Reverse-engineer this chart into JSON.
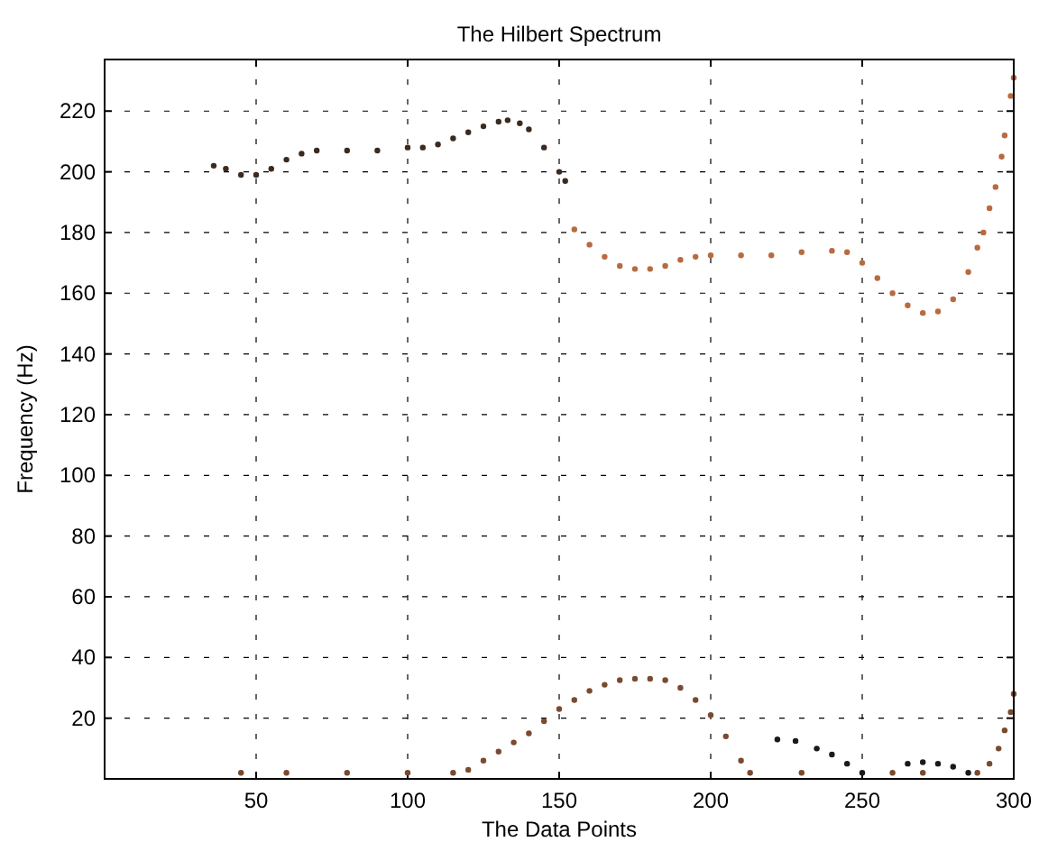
{
  "chart_data": {
    "type": "scatter",
    "title": "The Hilbert Spectrum",
    "xlabel": "The Data Points",
    "ylabel": "Frequency (Hz)",
    "xlim": [
      0,
      300
    ],
    "xticks": [
      50,
      100,
      150,
      200,
      250,
      300
    ],
    "ylim": [
      0,
      237
    ],
    "yticks": [
      20,
      40,
      60,
      80,
      100,
      120,
      140,
      160,
      180,
      200,
      220
    ],
    "grid": true,
    "marker": "circle",
    "series": [
      {
        "color": "#3b2a20",
        "x": [
          36,
          40,
          45,
          50,
          55,
          60,
          65,
          70,
          80,
          90,
          100,
          105,
          110,
          115,
          120,
          125,
          130,
          133,
          137,
          140,
          145,
          150,
          152
        ],
        "values": [
          202,
          201,
          199,
          199,
          201,
          204,
          206,
          207,
          207,
          207,
          208,
          208,
          209,
          211,
          213,
          215,
          216.5,
          217,
          216,
          214,
          208,
          200,
          197
        ]
      },
      {
        "color": "#b86a40",
        "x": [
          155,
          160,
          165,
          170,
          175,
          180,
          185,
          190,
          195,
          200,
          210,
          220,
          230,
          240,
          245,
          250,
          255,
          260,
          265,
          270,
          275,
          280,
          285,
          288,
          290,
          292,
          294,
          296,
          297,
          299,
          300
        ],
        "values": [
          181,
          176,
          172,
          169,
          168,
          168,
          169,
          171,
          172,
          172.5,
          172.5,
          172.5,
          173.5,
          174,
          173.5,
          170,
          165,
          160,
          156,
          153.5,
          154,
          158,
          167,
          175,
          180,
          188,
          195,
          205,
          212,
          225,
          231
        ]
      },
      {
        "color": "#7a4a30",
        "x": [
          45,
          60,
          80,
          100,
          115,
          120,
          125,
          130,
          135,
          140,
          145,
          150,
          155,
          160,
          165,
          170,
          175,
          180,
          185,
          190,
          195,
          200,
          205,
          210,
          213,
          230,
          260,
          270,
          288,
          292,
          295,
          297,
          299,
          300
        ],
        "values": [
          2,
          2,
          2,
          2,
          2,
          3,
          6,
          9,
          12,
          15,
          19,
          23,
          26,
          29,
          31,
          32.5,
          33,
          33,
          32.5,
          30,
          26,
          21,
          14,
          6,
          2,
          2,
          2,
          2,
          2,
          5,
          10,
          16,
          22,
          28
        ]
      },
      {
        "color": "#1a1a1a",
        "x": [
          222,
          228,
          235,
          240,
          245,
          250
        ],
        "values": [
          13,
          12.5,
          10,
          8,
          5,
          2
        ]
      },
      {
        "color": "#1a1a1a",
        "x": [
          265,
          270,
          275,
          280,
          285
        ],
        "values": [
          5,
          5.5,
          5,
          4,
          2
        ]
      }
    ]
  }
}
